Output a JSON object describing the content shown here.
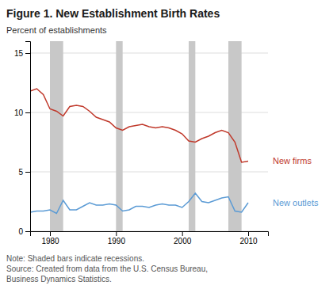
{
  "chart_data": {
    "type": "line",
    "title": "Figure 1. New Establishment Birth Rates",
    "ylabel": "Percent of establishments",
    "note": "Note: Shaded bars indicate recessions.\nSource: Created from data from the U.S. Census Bureau,\nBusiness Dynamics Statistics.",
    "x": [
      1977,
      1978,
      1979,
      1980,
      1981,
      1982,
      1983,
      1984,
      1985,
      1986,
      1987,
      1988,
      1989,
      1990,
      1991,
      1992,
      1993,
      1994,
      1995,
      1996,
      1997,
      1998,
      1999,
      2000,
      2001,
      2002,
      2003,
      2004,
      2005,
      2006,
      2007,
      2008,
      2009,
      2010
    ],
    "series": [
      {
        "name": "New firms",
        "color": "#c0392b",
        "values": [
          11.8,
          12.0,
          11.5,
          10.3,
          10.1,
          9.7,
          10.5,
          10.6,
          10.5,
          10.1,
          9.6,
          9.4,
          9.2,
          8.7,
          8.5,
          8.8,
          8.9,
          9.0,
          8.8,
          8.7,
          8.8,
          8.7,
          8.5,
          8.2,
          7.6,
          7.5,
          7.8,
          8.0,
          8.3,
          8.5,
          8.3,
          7.5,
          5.8,
          5.9
        ]
      },
      {
        "name": "New outlets",
        "color": "#5b9bd5",
        "values": [
          1.6,
          1.7,
          1.7,
          1.8,
          1.5,
          2.6,
          1.8,
          1.8,
          2.1,
          2.4,
          2.2,
          2.2,
          2.3,
          2.2,
          1.7,
          1.8,
          2.1,
          2.1,
          2.0,
          2.2,
          2.3,
          2.2,
          2.2,
          2.0,
          2.5,
          3.2,
          2.5,
          2.4,
          2.6,
          2.8,
          2.9,
          1.7,
          1.6,
          2.4
        ]
      }
    ],
    "recession_bars": {
      "color": "#c8c8c8",
      "spans": [
        [
          1980,
          1982
        ],
        [
          1990,
          1991
        ],
        [
          2001,
          2002
        ],
        [
          2007,
          2009
        ]
      ]
    },
    "xlim": [
      1977,
      2013
    ],
    "ylim": [
      0,
      16
    ],
    "xticks": [
      1980,
      1990,
      2000,
      2010
    ],
    "yticks": [
      0,
      5,
      10,
      15
    ],
    "grid": true
  }
}
